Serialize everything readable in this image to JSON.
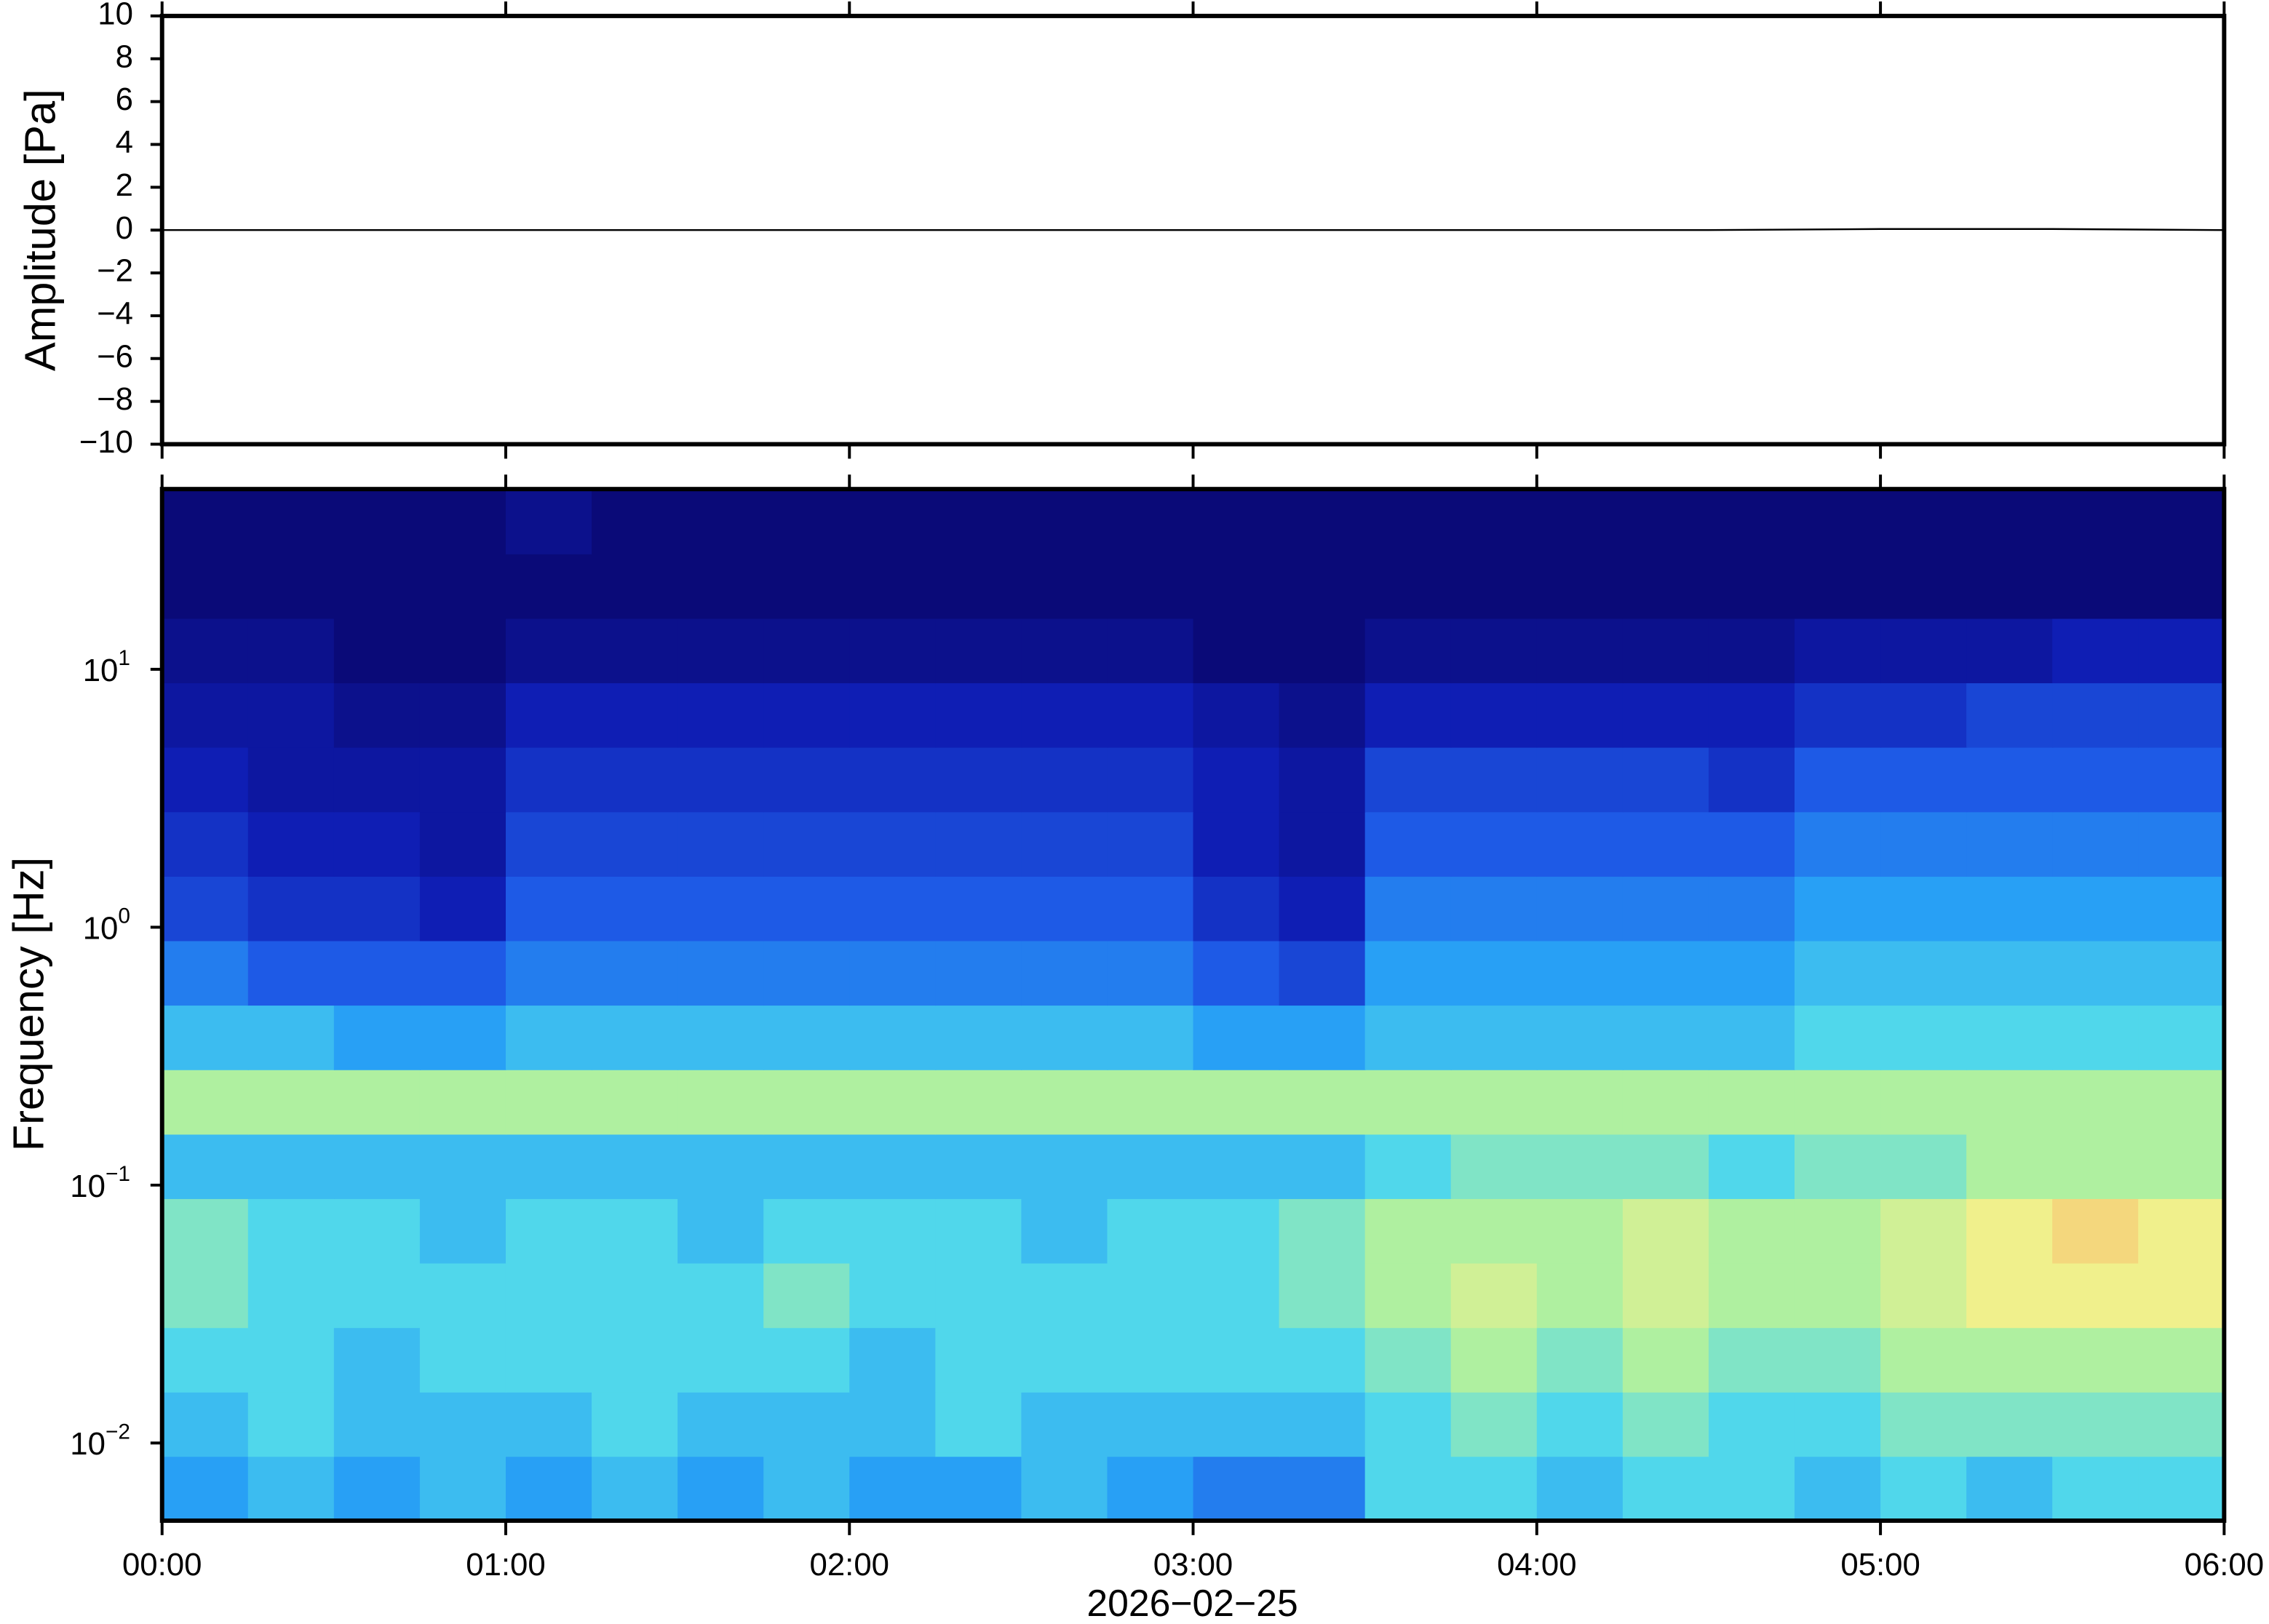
{
  "chart_data": [
    {
      "type": "line",
      "ylabel": "Amplitude [Pa]",
      "color": "#000000",
      "x": [
        0,
        0.5,
        1,
        1.5,
        2,
        2.5,
        3,
        3.5,
        4,
        4.5,
        5,
        5.5,
        6
      ],
      "values": [
        0,
        0,
        0,
        0,
        0,
        0,
        0,
        0,
        0,
        0,
        0.05,
        0.05,
        0
      ],
      "xlim": [
        0,
        6
      ],
      "ylim": [
        -10,
        10
      ],
      "xticks": [
        0,
        1,
        2,
        3,
        4,
        5,
        6
      ],
      "yticks": [
        {
          "value": -10,
          "label": "−10"
        },
        {
          "value": -8,
          "label": "−8"
        },
        {
          "value": -6,
          "label": "−6"
        },
        {
          "value": -4,
          "label": "−4"
        },
        {
          "value": -2,
          "label": "−2"
        },
        0,
        2,
        4,
        6,
        8,
        10
      ]
    },
    {
      "type": "heatmap",
      "ylabel": "Frequency [Hz]",
      "xlabel": "2026−02−25",
      "log_y": true,
      "xlim": [
        0,
        6
      ],
      "ylim": [
        0.005,
        50
      ],
      "xticks": [
        {
          "value": 0,
          "label": "00:00"
        },
        {
          "value": 1,
          "label": "01:00"
        },
        {
          "value": 2,
          "label": "02:00"
        },
        {
          "value": 3,
          "label": "03:00"
        },
        {
          "value": 4,
          "label": "04:00"
        },
        {
          "value": 5,
          "label": "05:00"
        },
        {
          "value": 6,
          "label": "06:00"
        }
      ],
      "yticks": [
        {
          "value": 0.01,
          "label": {
            "base": "10",
            "exponent": "−2"
          }
        },
        {
          "value": 0.1,
          "label": {
            "base": "10",
            "exponent": "−1"
          }
        },
        {
          "value": 1,
          "label": {
            "base": "10",
            "exponent": "0"
          }
        },
        {
          "value": 10,
          "label": {
            "base": "10",
            "exponent": "1"
          }
        }
      ],
      "xbins": [
        0,
        0.25,
        0.5,
        0.75,
        1,
        1.25,
        1.5,
        1.75,
        2,
        2.25,
        2.5,
        2.75,
        3,
        3.25,
        3.5,
        3.75,
        4,
        4.25,
        4.5,
        4.75,
        5,
        5.25,
        5.5,
        5.75,
        6
      ],
      "ybins": [
        0.005,
        0.0089,
        0.0158,
        0.0281,
        0.05,
        0.0889,
        0.158,
        0.281,
        0.5,
        0.889,
        1.58,
        2.81,
        5,
        8.89,
        15.8,
        28.1,
        50
      ],
      "z": [
        [
          4,
          4.5,
          4,
          4.5,
          4,
          4.5,
          4,
          4.5,
          4,
          4,
          4.5,
          4,
          3.5,
          3.5,
          5,
          5,
          4.5,
          5,
          5,
          4.5,
          5,
          4.5,
          5,
          5
        ],
        [
          4.5,
          5,
          4.5,
          4.5,
          4.5,
          5,
          4.5,
          4.5,
          4.5,
          5,
          4.5,
          4.5,
          4.5,
          4.5,
          5,
          5.5,
          5,
          5.5,
          5,
          5,
          5.5,
          5.5,
          5.5,
          5.5
        ],
        [
          5,
          5,
          4.5,
          5,
          5,
          5,
          5,
          5,
          4.5,
          5,
          5,
          5,
          5,
          5,
          5.5,
          6,
          5.5,
          6,
          5.5,
          5.5,
          6,
          6,
          6,
          6
        ],
        [
          5.5,
          5,
          5,
          5,
          5,
          5,
          5,
          5.5,
          5,
          5,
          5,
          5,
          5,
          5.5,
          6,
          6.5,
          6,
          6.5,
          6,
          6,
          6.5,
          7,
          7,
          7
        ],
        [
          5.5,
          5,
          5,
          4.5,
          5,
          5,
          4.5,
          5,
          5,
          5,
          4.5,
          5,
          5,
          5.5,
          6,
          6,
          6,
          6.5,
          6,
          6,
          6.5,
          7,
          7.5,
          7
        ],
        [
          4.5,
          4.5,
          4.5,
          4.5,
          4.5,
          4.5,
          4.5,
          4.5,
          4.5,
          4.5,
          4.5,
          4.5,
          4.5,
          4.5,
          5,
          5.5,
          5.5,
          5.5,
          5,
          5.5,
          5.5,
          6,
          6,
          6
        ],
        [
          6,
          6,
          6,
          6,
          6,
          6,
          6,
          6,
          6,
          6,
          6,
          6,
          6,
          6,
          6,
          6,
          6,
          6,
          6,
          6,
          6,
          6,
          6,
          6
        ],
        [
          4.5,
          4.5,
          4,
          4,
          4.5,
          4.5,
          4.5,
          4.5,
          4.5,
          4.5,
          4.5,
          4.5,
          4,
          4,
          4.5,
          4.5,
          4.5,
          4.5,
          4.5,
          5,
          5,
          5,
          5,
          5
        ],
        [
          3.5,
          3,
          3,
          3,
          3.5,
          3.5,
          3.5,
          3.5,
          3.5,
          3.5,
          3.5,
          3.5,
          3,
          2.5,
          4,
          4,
          4,
          4,
          4,
          4.5,
          4.5,
          4.5,
          4.5,
          4.5
        ],
        [
          2.5,
          2,
          2,
          1.5,
          3,
          3,
          3,
          3,
          3,
          3,
          3,
          3,
          2,
          1.5,
          3.5,
          3.5,
          3.5,
          3.5,
          3.5,
          4,
          4,
          4,
          4,
          4
        ],
        [
          2,
          1.5,
          1.5,
          1,
          2.5,
          2.5,
          2.5,
          2.5,
          2.5,
          2.5,
          2.5,
          2.5,
          1.5,
          1,
          3,
          3,
          3,
          3,
          3,
          3.5,
          3.5,
          3.5,
          3.5,
          3.5
        ],
        [
          1.5,
          1,
          1,
          1,
          2,
          2,
          2,
          2,
          2,
          2,
          2,
          2,
          1.5,
          1,
          2.5,
          2.5,
          2.5,
          2.5,
          2,
          3,
          3,
          3,
          3,
          3
        ],
        [
          1,
          1,
          0.5,
          0.5,
          1.5,
          1.5,
          1.5,
          1.5,
          1.5,
          1.5,
          1.5,
          1.5,
          1,
          0.5,
          1.5,
          1.5,
          1.5,
          1.5,
          1.5,
          2,
          2,
          2.5,
          2.5,
          2.5
        ],
        [
          0.5,
          0.5,
          0,
          0,
          0.5,
          0.5,
          0.5,
          0.5,
          0.5,
          0.5,
          0.5,
          0.5,
          0,
          0,
          0.5,
          0.5,
          0.5,
          0.5,
          0.5,
          1,
          1,
          1,
          1.5,
          1.5
        ],
        [
          0,
          0,
          0,
          0,
          0,
          0,
          0,
          0,
          0,
          0,
          0,
          0,
          0,
          0,
          0,
          0,
          0,
          0,
          0,
          0,
          0,
          0,
          0,
          0
        ],
        [
          0,
          0,
          0,
          0,
          0.5,
          0,
          0,
          0,
          0,
          0,
          0,
          0,
          0,
          0,
          0,
          0,
          0,
          0,
          0,
          0,
          0,
          0,
          0,
          0
        ]
      ]
    }
  ]
}
